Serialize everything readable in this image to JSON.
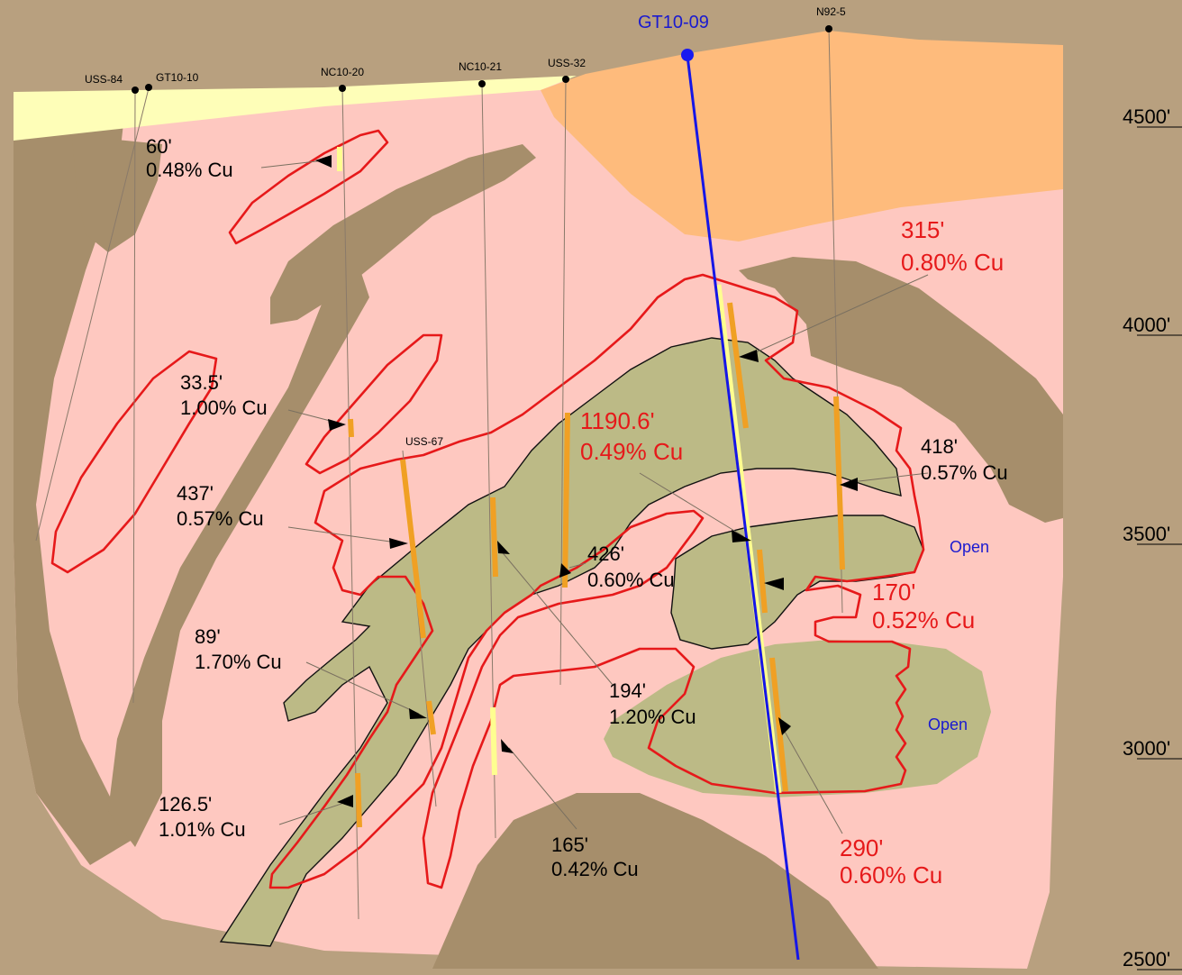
{
  "title_hole": "GT10-09",
  "colors": {
    "background": "#b8a07f",
    "altered_zone": "#fec8c0",
    "fill_dark": "#a68e6b",
    "olive_intrusive": "#bcba86",
    "gray_unit": "#bdbdbd",
    "cover_yellow": "#fefeb8",
    "cover_orange": "#febb7c",
    "cu_outline": "#e6191a",
    "hole_blue": "#1616e6",
    "assay_orange": "#f0a024",
    "assay_yellow": "#fefe90"
  },
  "drillholes": [
    {
      "name": "USS-84"
    },
    {
      "name": "GT10-10"
    },
    {
      "name": "NC10-20"
    },
    {
      "name": "NC10-21"
    },
    {
      "name": "USS-32"
    },
    {
      "name": "N92-5"
    },
    {
      "name": "USS-67"
    }
  ],
  "elevations": [
    "4500'",
    "4000'",
    "3500'",
    "3000'",
    "2500'"
  ],
  "intercepts": [
    {
      "length": "60'",
      "grade": "0.48% Cu"
    },
    {
      "length": "33.5'",
      "grade": "1.00% Cu"
    },
    {
      "length": "437'",
      "grade": "0.57% Cu"
    },
    {
      "length": "89'",
      "grade": "1.70% Cu"
    },
    {
      "length": "126.5'",
      "grade": "1.01% Cu"
    },
    {
      "length": "165'",
      "grade": "0.42% Cu"
    },
    {
      "length": "194'",
      "grade": "1.20% Cu"
    },
    {
      "length": "426'",
      "grade": "0.60% Cu"
    },
    {
      "length": "418'",
      "grade": "0.57% Cu"
    },
    {
      "length": "315'",
      "grade": "0.80% Cu"
    },
    {
      "length": "1190.6'",
      "grade": "0.49% Cu"
    },
    {
      "length": "170'",
      "grade": "0.52% Cu"
    },
    {
      "length": "290'",
      "grade": "0.60% Cu"
    }
  ],
  "open_labels": [
    "Open",
    "Open"
  ]
}
